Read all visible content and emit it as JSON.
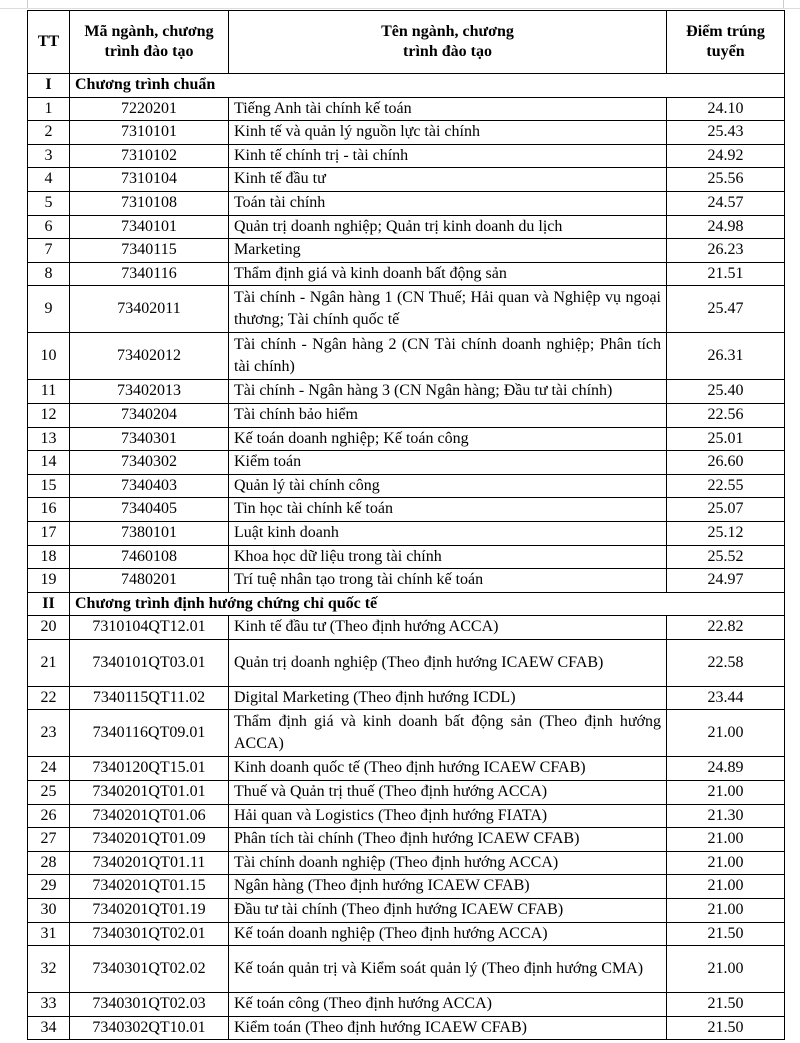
{
  "headers": {
    "tt": "TT",
    "code": "Mã ngành, chương trình đào tạo",
    "name": "Tên ngành, chương trình đào tạo",
    "score": "Điểm trúng tuyển"
  },
  "sections": [
    {
      "roman": "I",
      "title": "Chương trình chuẩn",
      "rows": [
        {
          "tt": "1",
          "code": "7220201",
          "name": "Tiếng Anh tài chính kế toán",
          "score": "24.10"
        },
        {
          "tt": "2",
          "code": "7310101",
          "name": "Kinh tế và quản lý nguồn lực tài chính",
          "score": "25.43"
        },
        {
          "tt": "3",
          "code": "7310102",
          "name": "Kinh tế chính trị - tài chính",
          "score": "24.92"
        },
        {
          "tt": "4",
          "code": "7310104",
          "name": "Kinh tế đầu tư",
          "score": "25.56"
        },
        {
          "tt": "5",
          "code": "7310108",
          "name": "Toán tài chính",
          "score": "24.57"
        },
        {
          "tt": "6",
          "code": "7340101",
          "name": "Quản trị doanh nghiệp;  Quản trị kinh doanh du lịch",
          "score": "24.98"
        },
        {
          "tt": "7",
          "code": "7340115",
          "name": "Marketing",
          "score": "26.23"
        },
        {
          "tt": "8",
          "code": "7340116",
          "name": "Thẩm định giá và kinh doanh bất động sản",
          "score": "21.51"
        },
        {
          "tt": "9",
          "code": "73402011",
          "name": "Tài chính - Ngân hàng 1 (CN Thuế;  Hải quan và Nghiệp vụ ngoại thương;  Tài chính quốc tế",
          "score": "25.47",
          "tall": true
        },
        {
          "tt": "10",
          "code": "73402012",
          "name": "Tài chính - Ngân hàng 2 (CN Tài chính doanh nghiệp; Phân tích tài chính)",
          "score": "26.31",
          "tall": true
        },
        {
          "tt": "11",
          "code": "73402013",
          "name": "Tài chính - Ngân hàng 3 (CN Ngân hàng;  Đầu tư tài chính)",
          "score": "25.40"
        },
        {
          "tt": "12",
          "code": "7340204",
          "name": "Tài chính bảo hiểm",
          "score": "22.56"
        },
        {
          "tt": "13",
          "code": "7340301",
          "name": "Kế toán doanh nghiệp; Kế toán công",
          "score": "25.01"
        },
        {
          "tt": "14",
          "code": "7340302",
          "name": "Kiểm toán",
          "score": "26.60"
        },
        {
          "tt": "15",
          "code": "7340403",
          "name": "Quản lý tài chính công",
          "score": "22.55"
        },
        {
          "tt": "16",
          "code": "7340405",
          "name": "Tin học tài chính kế toán",
          "score": "25.07"
        },
        {
          "tt": "17",
          "code": "7380101",
          "name": "Luật kinh doanh",
          "score": "25.12"
        },
        {
          "tt": "18",
          "code": "7460108",
          "name": "Khoa học dữ liệu trong tài chính",
          "score": "25.52"
        },
        {
          "tt": "19",
          "code": "7480201",
          "name": "Trí tuệ nhân tạo trong tài chính kế toán",
          "score": "24.97"
        }
      ]
    },
    {
      "roman": "II",
      "title": "Chương trình định hướng chứng chỉ quốc tế",
      "rows": [
        {
          "tt": "20",
          "code": "7310104QT12.01",
          "name": "Kinh tế đầu tư (Theo định hướng ACCA)",
          "score": "22.82"
        },
        {
          "tt": "21",
          "code": "7340101QT03.01",
          "name": "Quản trị doanh nghiệp (Theo định hướng ICAEW CFAB)",
          "score": "22.58",
          "tall": true
        },
        {
          "tt": "22",
          "code": "7340115QT11.02",
          "name": "Digital Marketing (Theo định hướng ICDL)",
          "score": "23.44"
        },
        {
          "tt": "23",
          "code": "7340116QT09.01",
          "name": "Thẩm định giá và kinh doanh bất động sản (Theo định hướng ACCA)",
          "score": "21.00",
          "tall": true
        },
        {
          "tt": "24",
          "code": "7340120QT15.01",
          "name": "Kinh doanh quốc tế (Theo định hướng ICAEW CFAB)",
          "score": "24.89"
        },
        {
          "tt": "25",
          "code": "7340201QT01.01",
          "name": "Thuế và Quản trị thuế (Theo định hướng ACCA)",
          "score": "21.00"
        },
        {
          "tt": "26",
          "code": "7340201QT01.06",
          "name": "Hải quan và Logistics (Theo định hướng FIATA)",
          "score": "21.30"
        },
        {
          "tt": "27",
          "code": "7340201QT01.09",
          "name": "Phân tích tài chính (Theo định hướng ICAEW CFAB)",
          "score": "21.00"
        },
        {
          "tt": "28",
          "code": "7340201QT01.11",
          "name": "Tài chính doanh nghiệp (Theo định hướng ACCA)",
          "score": "21.00"
        },
        {
          "tt": "29",
          "code": "7340201QT01.15",
          "name": "Ngân hàng (Theo định hướng ICAEW CFAB)",
          "score": "21.00"
        },
        {
          "tt": "30",
          "code": "7340201QT01.19",
          "name": "Đầu tư tài chính (Theo định hướng ICAEW CFAB)",
          "score": "21.00"
        },
        {
          "tt": "31",
          "code": "7340301QT02.01",
          "name": "Kế toán doanh nghiệp (Theo định hướng ACCA)",
          "score": "21.50"
        },
        {
          "tt": "32",
          "code": "7340301QT02.02",
          "name": "Kế toán quản trị và Kiểm soát quản lý (Theo định hướng CMA)",
          "score": "21.00",
          "tall": true
        },
        {
          "tt": "33",
          "code": "7340301QT02.03",
          "name": "Kế toán công (Theo định hướng ACCA)",
          "score": "21.50"
        },
        {
          "tt": "34",
          "code": "7340302QT10.01",
          "name": "Kiểm toán (Theo định hướng ICAEW CFAB)",
          "score": "21.50"
        }
      ]
    }
  ]
}
